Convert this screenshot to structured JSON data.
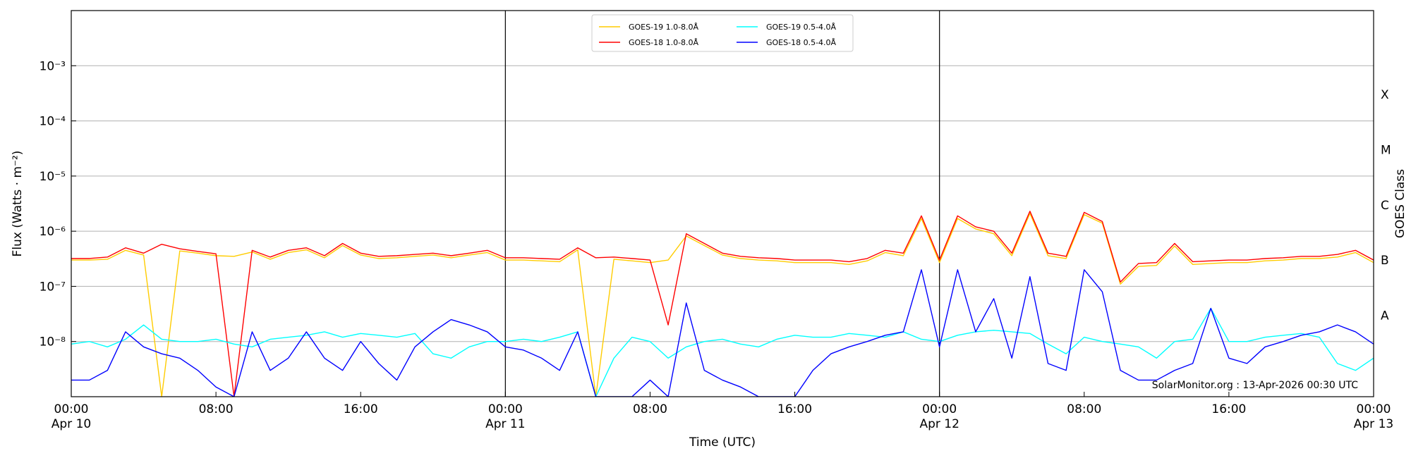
{
  "chart_data": {
    "type": "line",
    "y_label": "Flux (Watts · m⁻²)",
    "x_label": "Time (UTC)",
    "y2_label": "GOES Class",
    "annotation": "SolarMonitor.org : 13-Apr-2026 00:30 UTC",
    "log_y": true,
    "grid": true,
    "legend": "top-center",
    "x": [
      0,
      1,
      2,
      3,
      4,
      5,
      6,
      7,
      8,
      9,
      10,
      11,
      12,
      13,
      14,
      15,
      16,
      17,
      18,
      19,
      20,
      21,
      22,
      23,
      24,
      25,
      26,
      27,
      28,
      29,
      30,
      31,
      32,
      33,
      34,
      35,
      36,
      37,
      38,
      39,
      40,
      41,
      42,
      43,
      44,
      45,
      46,
      47,
      48,
      49,
      50,
      51,
      52,
      53,
      54,
      55,
      56,
      57,
      58,
      59,
      60,
      61,
      62,
      63,
      64,
      65,
      66,
      67,
      68,
      69,
      70,
      71,
      72
    ],
    "xlim": [
      0,
      72
    ],
    "xticks": [
      {
        "value": 0,
        "label": "00:00 Apr 10"
      },
      {
        "value": 8,
        "label": "08:00"
      },
      {
        "value": 16,
        "label": "16:00"
      },
      {
        "value": 24,
        "label": "00:00 Apr 11"
      },
      {
        "value": 32,
        "label": "08:00"
      },
      {
        "value": 40,
        "label": "16:00"
      },
      {
        "value": 48,
        "label": "00:00 Apr 12"
      },
      {
        "value": 56,
        "label": "08:00"
      },
      {
        "value": 64,
        "label": "16:00"
      },
      {
        "value": 72,
        "label": "00:00 Apr 13"
      }
    ],
    "vlines": [
      24,
      48
    ],
    "ylim": [
      1e-09,
      0.01
    ],
    "yticks": [
      {
        "value": 1e-08,
        "label": "10⁻⁸"
      },
      {
        "value": 1e-07,
        "label": "10⁻⁷"
      },
      {
        "value": 1e-06,
        "label": "10⁻⁶"
      },
      {
        "value": 1e-05,
        "label": "10⁻⁵"
      },
      {
        "value": 0.0001,
        "label": "10⁻⁴"
      },
      {
        "value": 0.001,
        "label": "10⁻³"
      }
    ],
    "y2lim": [
      1e-09,
      0.01
    ],
    "y2ticks": [
      {
        "value": 3e-08,
        "label": "A"
      },
      {
        "value": 3e-07,
        "label": "B"
      },
      {
        "value": 3e-06,
        "label": "C"
      },
      {
        "value": 3e-05,
        "label": "M"
      },
      {
        "value": 0.0003,
        "label": "X"
      }
    ],
    "series": [
      {
        "name": "GOES-19 1.0-8.0Å",
        "color": "#ffcc00",
        "values": [
          3e-07,
          3e-07,
          3.1e-07,
          4.5e-07,
          3.7e-07,
          1e-09,
          4.4e-07,
          4e-07,
          3.6e-07,
          3.5e-07,
          4.2e-07,
          3.1e-07,
          4.1e-07,
          4.6e-07,
          3.3e-07,
          5.5e-07,
          3.7e-07,
          3.2e-07,
          3.3e-07,
          3.5e-07,
          3.7e-07,
          3.3e-07,
          3.7e-07,
          4.1e-07,
          3e-07,
          3e-07,
          2.9e-07,
          2.8e-07,
          4.6e-07,
          1e-09,
          3.1e-07,
          2.9e-07,
          2.7e-07,
          3e-07,
          8.2e-07,
          5.5e-07,
          3.7e-07,
          3.2e-07,
          3e-07,
          2.9e-07,
          2.7e-07,
          2.7e-07,
          2.7e-07,
          2.5e-07,
          2.9e-07,
          4.1e-07,
          3.6e-07,
          1.7e-06,
          2.7e-07,
          1.7e-06,
          1.1e-06,
          9e-07,
          3.6e-07,
          2.1e-06,
          3.6e-07,
          3.2e-07,
          2e-06,
          1.4e-06,
          1.1e-07,
          2.3e-07,
          2.4e-07,
          5.4e-07,
          2.5e-07,
          2.6e-07,
          2.7e-07,
          2.7e-07,
          2.9e-07,
          3e-07,
          3.2e-07,
          3.2e-07,
          3.4e-07,
          4.1e-07,
          2.7e-07
        ]
      },
      {
        "name": "GOES-18 1.0-8.0Å",
        "color": "#ff0000",
        "values": [
          3.2e-07,
          3.2e-07,
          3.4e-07,
          5e-07,
          4e-07,
          5.8e-07,
          4.8e-07,
          4.3e-07,
          3.9e-07,
          1e-09,
          4.5e-07,
          3.4e-07,
          4.5e-07,
          5e-07,
          3.6e-07,
          6e-07,
          4e-07,
          3.5e-07,
          3.6e-07,
          3.8e-07,
          4e-07,
          3.6e-07,
          4e-07,
          4.5e-07,
          3.3e-07,
          3.3e-07,
          3.2e-07,
          3.1e-07,
          5e-07,
          3.3e-07,
          3.4e-07,
          3.2e-07,
          3e-07,
          2e-08,
          9e-07,
          6e-07,
          4e-07,
          3.5e-07,
          3.3e-07,
          3.2e-07,
          3e-07,
          3e-07,
          3e-07,
          2.8e-07,
          3.2e-07,
          4.5e-07,
          4e-07,
          1.9e-06,
          3e-07,
          1.9e-06,
          1.2e-06,
          1e-06,
          4e-07,
          2.3e-06,
          4e-07,
          3.5e-07,
          2.2e-06,
          1.5e-06,
          1.2e-07,
          2.6e-07,
          2.7e-07,
          6e-07,
          2.8e-07,
          2.9e-07,
          3e-07,
          3e-07,
          3.2e-07,
          3.3e-07,
          3.5e-07,
          3.5e-07,
          3.8e-07,
          4.5e-07,
          3e-07
        ]
      },
      {
        "name": "GOES-19 0.5-4.0Å",
        "color": "#00ffff",
        "values": [
          9e-09,
          1e-08,
          8e-09,
          1.1e-08,
          2e-08,
          1.1e-08,
          1e-08,
          1e-08,
          1.1e-08,
          9e-09,
          8e-09,
          1.1e-08,
          1.2e-08,
          1.3e-08,
          1.5e-08,
          1.2e-08,
          1.4e-08,
          1.3e-08,
          1.2e-08,
          1.4e-08,
          6e-09,
          5e-09,
          8e-09,
          1e-08,
          1e-08,
          1.1e-08,
          1e-08,
          1.2e-08,
          1.5e-08,
          1e-09,
          5e-09,
          1.2e-08,
          1e-08,
          5e-09,
          8e-09,
          1e-08,
          1.1e-08,
          9e-09,
          8e-09,
          1.1e-08,
          1.3e-08,
          1.2e-08,
          1.2e-08,
          1.4e-08,
          1.3e-08,
          1.2e-08,
          1.5e-08,
          1.1e-08,
          1e-08,
          1.3e-08,
          1.5e-08,
          1.6e-08,
          1.5e-08,
          1.4e-08,
          9e-09,
          6e-09,
          1.2e-08,
          1e-08,
          9e-09,
          8e-09,
          5e-09,
          1e-08,
          1.1e-08,
          4e-08,
          1e-08,
          1e-08,
          1.2e-08,
          1.3e-08,
          1.4e-08,
          1.2e-08,
          4e-09,
          3e-09,
          5e-09
        ]
      },
      {
        "name": "GOES-18 0.5-4.0Å",
        "color": "#0000ff",
        "values": [
          2e-09,
          2e-09,
          3e-09,
          1.5e-08,
          8e-09,
          6e-09,
          5e-09,
          3e-09,
          1.5e-09,
          1e-09,
          1.5e-08,
          3e-09,
          5e-09,
          1.5e-08,
          5e-09,
          3e-09,
          1e-08,
          4e-09,
          2e-09,
          8e-09,
          1.5e-08,
          2.5e-08,
          2e-08,
          1.5e-08,
          8e-09,
          7e-09,
          5e-09,
          3e-09,
          1.5e-08,
          1e-09,
          1e-09,
          1e-09,
          2e-09,
          1e-09,
          5e-08,
          3e-09,
          2e-09,
          1.5e-09,
          1e-09,
          1e-09,
          1e-09,
          3e-09,
          6e-09,
          8e-09,
          1e-08,
          1.3e-08,
          1.5e-08,
          2e-07,
          8e-09,
          2e-07,
          1.5e-08,
          6e-08,
          5e-09,
          1.5e-07,
          4e-09,
          3e-09,
          2e-07,
          8e-08,
          3e-09,
          2e-09,
          2e-09,
          3e-09,
          4e-09,
          4e-08,
          5e-09,
          4e-09,
          8e-09,
          1e-08,
          1.3e-08,
          1.5e-08,
          2e-08,
          1.5e-08,
          9e-09
        ]
      }
    ]
  }
}
